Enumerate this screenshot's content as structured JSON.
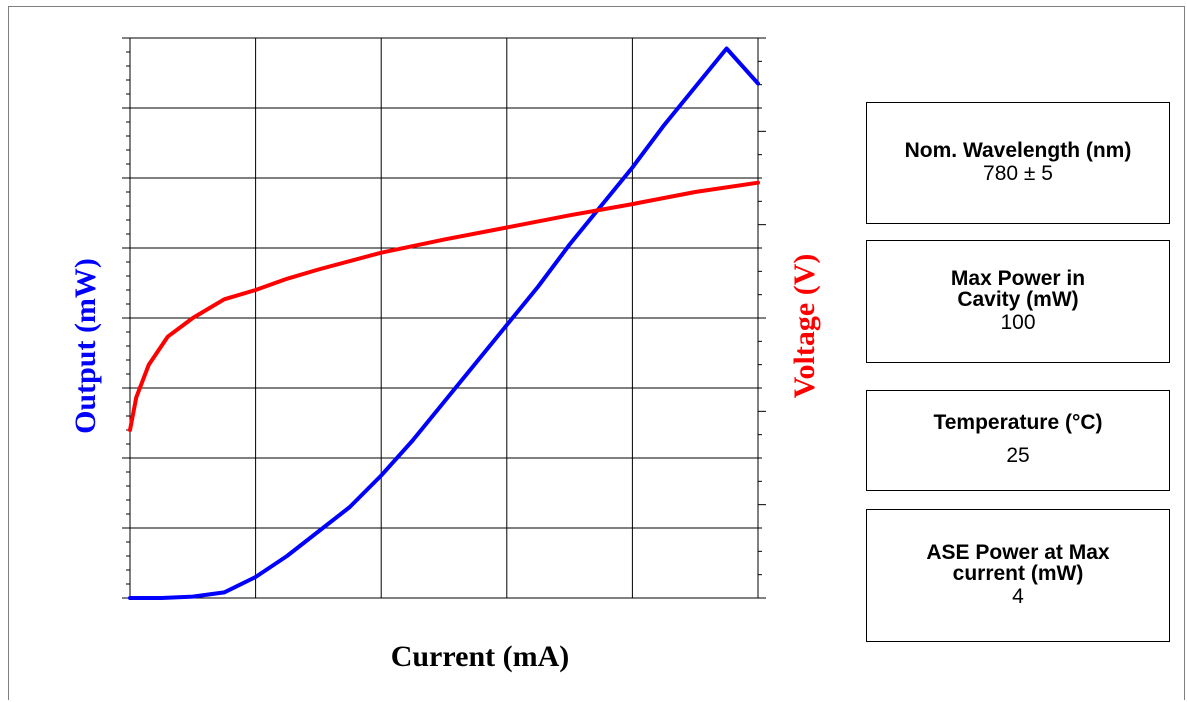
{
  "chart_data": {
    "type": "line",
    "xlabel": "Current (mA)",
    "ylabel": "Output (mW)",
    "y2label": "Voltage (V)",
    "xlim": [
      0,
      10
    ],
    "ylim": [
      0,
      8
    ],
    "y2lim": [
      0,
      6
    ],
    "grid": true,
    "tick_labels_shown": false,
    "series": [
      {
        "axis": "left",
        "color": "#0000ff",
        "x": [
          0,
          0.5,
          1,
          1.5,
          2,
          2.5,
          3,
          3.5,
          4,
          4.5,
          5,
          5.5,
          6,
          6.5,
          7,
          7.5,
          8,
          8.5,
          9,
          9.5,
          10
        ],
        "y": [
          0,
          0.0,
          0.02,
          0.08,
          0.3,
          0.6,
          0.95,
          1.3,
          1.75,
          2.25,
          2.8,
          3.35,
          3.9,
          4.45,
          5.05,
          5.6,
          6.15,
          6.75,
          7.3,
          7.85,
          7.35
        ]
      },
      {
        "axis": "right",
        "color": "#ff0000",
        "x": [
          0,
          0.1,
          0.3,
          0.6,
          1,
          1.5,
          2,
          2.5,
          3,
          4,
          5,
          6,
          7,
          8,
          9,
          10
        ],
        "y": [
          1.8,
          2.15,
          2.5,
          2.8,
          3.0,
          3.2,
          3.3,
          3.42,
          3.52,
          3.7,
          3.84,
          3.97,
          4.1,
          4.22,
          4.35,
          4.45
        ]
      }
    ]
  },
  "specs": [
    {
      "label": "Nom. Wavelength (nm)",
      "value": "780 ± 5"
    },
    {
      "label": "Max Power in Cavity (mW)",
      "value": "100"
    },
    {
      "label": "Temperature (°C)",
      "value": "25"
    },
    {
      "label": "ASE Power at Max current (mW)",
      "value": "4"
    }
  ]
}
